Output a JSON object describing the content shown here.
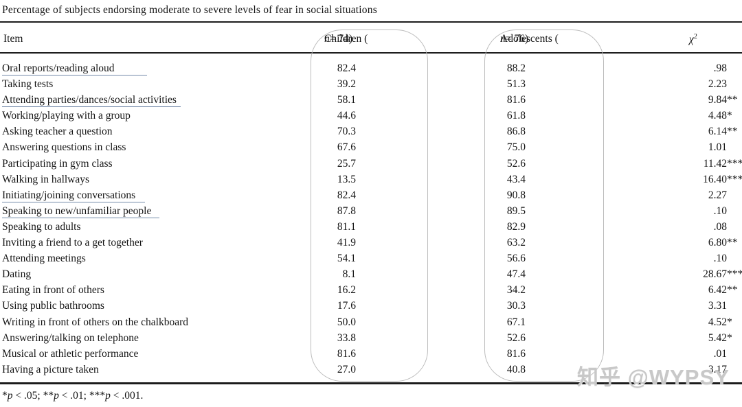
{
  "title": "Percentage of subjects endorsing moderate to severe levels of fear in social situations",
  "colors": {
    "text": "#141414",
    "rule": "#1c1c1c",
    "annotation_oval": "#bcbcbc",
    "annotation_underline": "#7188a8",
    "watermark": "#c8c8c8"
  },
  "header": {
    "item": "Item",
    "children": {
      "prefix": "Children (",
      "n": "n",
      "suffix": " = 74)"
    },
    "adolescents": {
      "prefix": "Adolescents (",
      "n": "n",
      "suffix": " = 76)"
    },
    "chi": {
      "symbol": "χ",
      "sup": "2"
    }
  },
  "table": {
    "rows": [
      {
        "item": "Oral reports/reading aloud",
        "children": "82.4",
        "adolescents": "88.2",
        "chi": ".98",
        "stars": "",
        "underline": {
          "extend": 47
        }
      },
      {
        "item": "Taking tests",
        "children": "39.2",
        "adolescents": "51.3",
        "chi": "2.23",
        "stars": ""
      },
      {
        "item": "Attending parties/dances/social activities",
        "children": "58.1",
        "adolescents": "81.6",
        "chi": "9.84",
        "stars": "**",
        "underline": {
          "extend": 6
        }
      },
      {
        "item": "Working/playing with a group",
        "children": "44.6",
        "adolescents": "61.8",
        "chi": "4.48",
        "stars": "*"
      },
      {
        "item": "Asking teacher a question",
        "children": "70.3",
        "adolescents": "86.8",
        "chi": "6.14",
        "stars": "**"
      },
      {
        "item": "Answering questions in class",
        "children": "67.6",
        "adolescents": "75.0",
        "chi": "1.01",
        "stars": ""
      },
      {
        "item": "Participating in gym class",
        "children": "25.7",
        "adolescents": "52.6",
        "chi": "11.42",
        "stars": "***"
      },
      {
        "item": "Walking in hallways",
        "children": "13.5",
        "adolescents": "43.4",
        "chi": "16.40",
        "stars": "***"
      },
      {
        "item": "Initiating/joining conversations",
        "children": "82.4",
        "adolescents": "90.8",
        "chi": "2.27",
        "stars": "",
        "underline": {
          "extend": 14
        }
      },
      {
        "item": "Speaking to new/unfamiliar people",
        "children": "87.8",
        "adolescents": "89.5",
        "chi": ".10",
        "stars": "",
        "underline": {
          "extend": 12
        }
      },
      {
        "item": "Speaking to adults",
        "children": "81.1",
        "adolescents": "82.9",
        "chi": ".08",
        "stars": ""
      },
      {
        "item": "Inviting a friend to a get together",
        "children": "41.9",
        "adolescents": "63.2",
        "chi": "6.80",
        "stars": "**"
      },
      {
        "item": "Attending meetings",
        "children": "54.1",
        "adolescents": "56.6",
        "chi": ".10",
        "stars": ""
      },
      {
        "item": "Dating",
        "children": "8.1",
        "adolescents": "47.4",
        "chi": "28.67",
        "stars": "***"
      },
      {
        "item": "Eating in front of others",
        "children": "16.2",
        "adolescents": "34.2",
        "chi": "6.42",
        "stars": "**"
      },
      {
        "item": "Using public bathrooms",
        "children": "17.6",
        "adolescents": "30.3",
        "chi": "3.31",
        "stars": ""
      },
      {
        "item": "Writing in front of others on the chalkboard",
        "children": "50.0",
        "adolescents": "67.1",
        "chi": "4.52",
        "stars": "*"
      },
      {
        "item": "Answering/talking on telephone",
        "children": "33.8",
        "adolescents": "52.6",
        "chi": "5.42",
        "stars": "*"
      },
      {
        "item": "Musical or athletic performance",
        "children": "81.6",
        "adolescents": "81.6",
        "chi": ".01",
        "stars": ""
      },
      {
        "item": "Having a picture taken",
        "children": "27.0",
        "adolescents": "40.8",
        "chi": "3.17",
        "stars": ""
      }
    ]
  },
  "footnote": {
    "segments": [
      {
        "stars": "*",
        "p": "p",
        "cond": " < .05; "
      },
      {
        "stars": "**",
        "p": "p",
        "cond": " < .01; "
      },
      {
        "stars": "***",
        "p": "p",
        "cond": " < .001."
      }
    ]
  },
  "watermark": "知乎 @WYPSY"
}
